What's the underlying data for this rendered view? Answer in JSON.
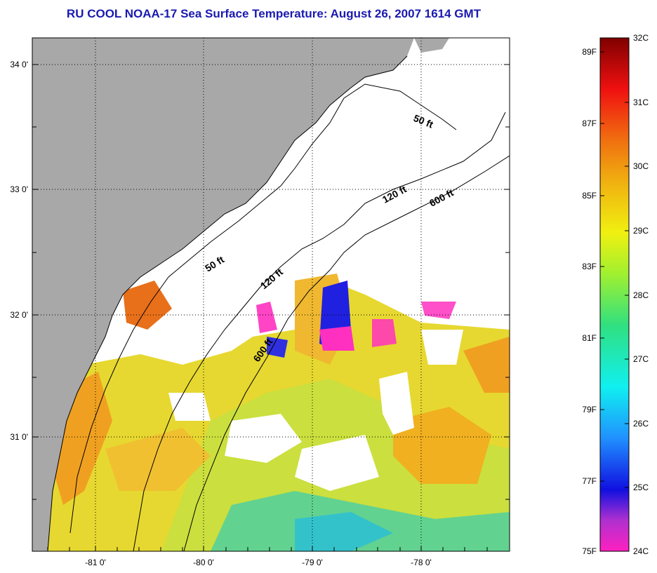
{
  "title": "RU COOL  NOAA-17  Sea Surface Temperature:  August 26, 2007 1614 GMT",
  "map": {
    "lon_labels": [
      "-81 0'",
      "-80 0'",
      "-79 0'",
      "-78 0'"
    ],
    "lat_labels": [
      "34 0'",
      "33 0'",
      "32 0'",
      "31 0'"
    ],
    "contours": [
      {
        "label": "50 ft"
      },
      {
        "label": "120 ft"
      },
      {
        "label": "600 ft"
      },
      {
        "label": "50 ft"
      },
      {
        "label": "120 ft"
      },
      {
        "label": "600 ft"
      }
    ],
    "colors": {
      "land": "#a8a8a8",
      "cloud": "#ffffff",
      "warm": "#f0b020",
      "hot": "#e8701a",
      "mid": "#e8e030",
      "cool": "#a0e040",
      "cold": "#30c0d0",
      "coldest": "#2020e0",
      "magenta": "#ff30c0"
    }
  },
  "colorbar": {
    "fahrenheit_labels": [
      "89F",
      "87F",
      "85F",
      "83F",
      "81F",
      "79F",
      "77F",
      "75F"
    ],
    "celsius_labels": [
      "32C",
      "31C",
      "30C",
      "29C",
      "28C",
      "27C",
      "26C",
      "25C",
      "24C"
    ],
    "range_c": [
      24,
      32
    ]
  }
}
